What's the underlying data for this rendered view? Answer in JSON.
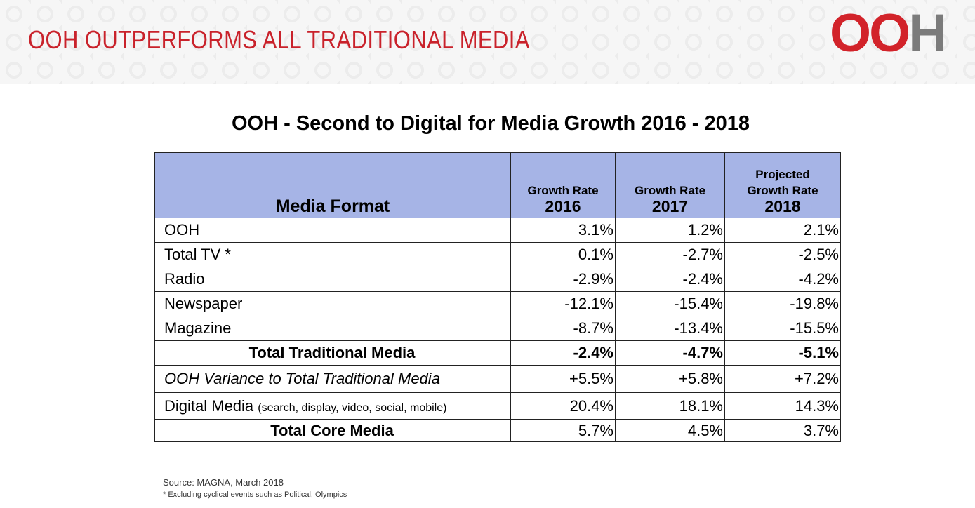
{
  "header": {
    "title": "OOH OUTPERFORMS ALL TRADITIONAL MEDIA",
    "logo": "OOH"
  },
  "table": {
    "title": "OOH - Second to Digital for Media Growth 2016 - 2018",
    "columns": [
      [
        "Media Format"
      ],
      [
        "Growth Rate",
        "2016"
      ],
      [
        "Growth Rate",
        "2017"
      ],
      [
        "Projected",
        "Growth Rate",
        "2018"
      ]
    ],
    "rows": [
      {
        "label": "OOH",
        "values": [
          "3.1%",
          "1.2%",
          "2.1%"
        ]
      },
      {
        "label": "Total TV *",
        "values": [
          "0.1%",
          "-2.7%",
          "-2.5%"
        ]
      },
      {
        "label": "Radio",
        "values": [
          "-2.9%",
          "-2.4%",
          "-4.2%"
        ]
      },
      {
        "label": "Newspaper",
        "values": [
          "-12.1%",
          "-15.4%",
          "-19.8%"
        ]
      },
      {
        "label": "Magazine",
        "values": [
          "-8.7%",
          "-13.4%",
          "-15.5%"
        ]
      },
      {
        "label": "Total Traditional Media",
        "values": [
          "-2.4%",
          "-4.7%",
          "-5.1%"
        ]
      },
      {
        "label": "OOH Variance to Total Traditional Media",
        "values": [
          "+5.5%",
          "+5.8%",
          "+7.2%"
        ]
      },
      {
        "label": "Digital Media",
        "note": "(search, display, video, social, mobile)",
        "values": [
          "20.4%",
          "18.1%",
          "14.3%"
        ]
      },
      {
        "label": "Total Core Media",
        "values": [
          "5.7%",
          "4.5%",
          "3.7%"
        ]
      }
    ]
  },
  "footer": {
    "source": "Source: MAGNA, March 2018",
    "footnote": "* Excluding cyclical events such as Political, Olympics"
  }
}
